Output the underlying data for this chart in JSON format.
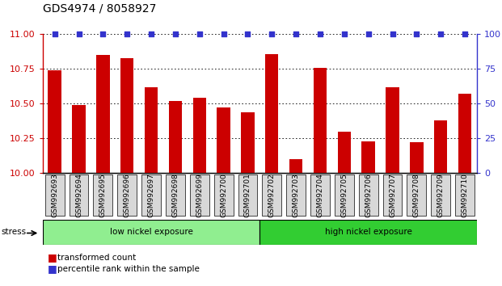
{
  "title": "GDS4974 / 8058927",
  "samples": [
    "GSM992693",
    "GSM992694",
    "GSM992695",
    "GSM992696",
    "GSM992697",
    "GSM992698",
    "GSM992699",
    "GSM992700",
    "GSM992701",
    "GSM992702",
    "GSM992703",
    "GSM992704",
    "GSM992705",
    "GSM992706",
    "GSM992707",
    "GSM992708",
    "GSM992709",
    "GSM992710"
  ],
  "bar_values": [
    10.74,
    10.49,
    10.85,
    10.83,
    10.62,
    10.52,
    10.54,
    10.47,
    10.44,
    10.86,
    10.1,
    10.76,
    10.3,
    10.23,
    10.62,
    10.22,
    10.38,
    10.57
  ],
  "percentile_values": [
    100,
    100,
    100,
    100,
    100,
    100,
    100,
    100,
    100,
    100,
    100,
    100,
    100,
    100,
    100,
    100,
    100,
    100
  ],
  "bar_color": "#cc0000",
  "dot_color": "#3333cc",
  "ylim_left": [
    10.0,
    11.0
  ],
  "ylim_right": [
    0,
    100
  ],
  "yticks_left": [
    10.0,
    10.25,
    10.5,
    10.75,
    11.0
  ],
  "yticks_right": [
    0,
    25,
    50,
    75,
    100
  ],
  "groups": [
    {
      "label": "low nickel exposure",
      "start": 0,
      "end": 9,
      "color": "#90ee90"
    },
    {
      "label": "high nickel exposure",
      "start": 9,
      "end": 18,
      "color": "#32cd32"
    }
  ],
  "stress_label": "stress",
  "legend_bar_label": "transformed count",
  "legend_dot_label": "percentile rank within the sample",
  "background_color": "#ffffff",
  "plot_bg_color": "#ffffff",
  "title_fontsize": 10,
  "tick_label_fontsize": 6.5,
  "axis_label_color_left": "#cc0000",
  "axis_label_color_right": "#3333cc",
  "bar_width": 0.55,
  "dot_size": 18
}
